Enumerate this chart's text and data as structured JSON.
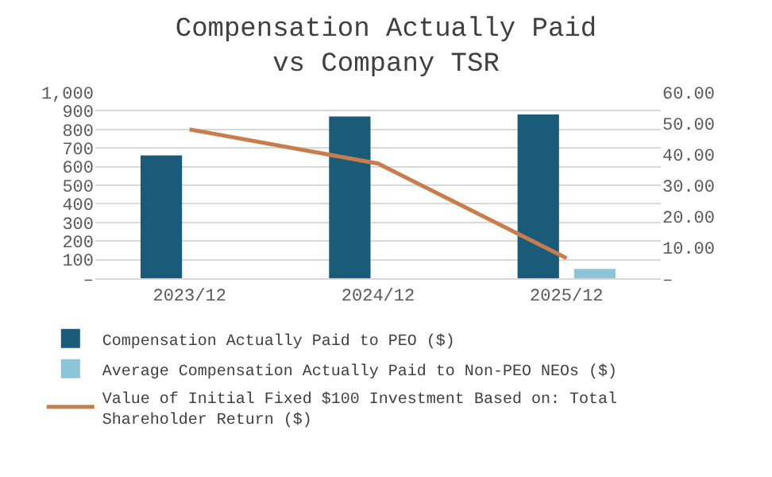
{
  "chart_data": {
    "type": "bar",
    "title": "Compensation Actually Paid vs Company TSR",
    "categories": [
      "2023/12",
      "2024/12",
      "2025/12"
    ],
    "series": [
      {
        "name": "Compensation Actually Paid to PEO ($)",
        "color": "#1b5b7a",
        "values": [
          660,
          870,
          880
        ]
      },
      {
        "name": "Average Compensation Actually Paid to Non-PEO NEOs ($)",
        "color": "#8cc4d8",
        "values": [
          null,
          null,
          50
        ]
      },
      {
        "name": "Value of Initial Fixed $100 Investment Based on: Total Shareholder Return ($)",
        "type": "line",
        "axis": "y2",
        "color": "#c97d4c",
        "values": [
          48,
          37,
          6.5
        ]
      }
    ],
    "ylim": [
      0,
      1000
    ],
    "yticks": [
      {
        "value": 0,
        "label": "–"
      },
      100,
      200,
      300,
      400,
      500,
      600,
      700,
      800,
      900,
      {
        "value": 1000,
        "label": "1,000"
      }
    ],
    "y2lim": [
      0,
      60
    ],
    "y2ticks": [
      {
        "value": 0,
        "label": "–"
      },
      {
        "value": 10,
        "label": "10.00"
      },
      {
        "value": 20,
        "label": "20.00"
      },
      {
        "value": 30,
        "label": "30.00"
      },
      {
        "value": 40,
        "label": "40.00"
      },
      {
        "value": 50,
        "label": "50.00"
      },
      {
        "value": 60,
        "label": "60.00"
      }
    ],
    "grid": "y",
    "legend": "bottom",
    "marker": "none",
    "line_style": "solid"
  }
}
